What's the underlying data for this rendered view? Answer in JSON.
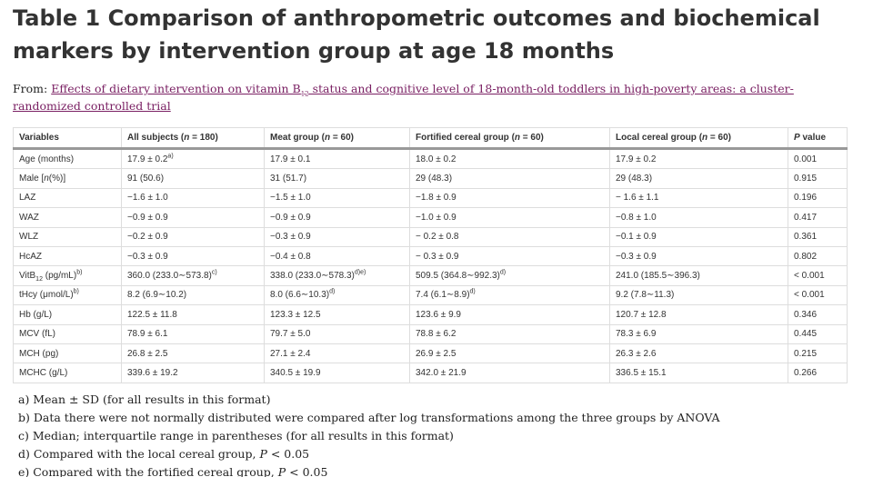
{
  "header": {
    "title": "Table 1 Comparison of anthropometric outcomes and biochemical markers by intervention group at age 18 months",
    "from_label": "From: ",
    "link": [
      "Effects of dietary intervention on vitamin B",
      {
        "sub": "12"
      },
      " status and cognitive level of 18-month-old toddlers in high-poverty areas: a cluster-randomized controlled trial"
    ]
  },
  "table": {
    "columns": [
      "Variables",
      [
        "All subjects (",
        {
          "i": "n"
        },
        " = 180)"
      ],
      [
        "Meat group (",
        {
          "i": "n"
        },
        " = 60)"
      ],
      [
        "Fortified cereal group (",
        {
          "i": "n"
        },
        " = 60)"
      ],
      [
        "Local cereal group (",
        {
          "i": "n"
        },
        " = 60)"
      ],
      [
        {
          "i": "P"
        },
        " value"
      ]
    ],
    "rows": [
      [
        "Age (months)",
        [
          "17.9 ± 0.2",
          {
            "sup": "a)"
          }
        ],
        "17.9 ± 0.1",
        "18.0 ± 0.2",
        "17.9 ± 0.2",
        "0.001"
      ],
      [
        [
          "Male [",
          {
            "i": "n"
          },
          "(%)]"
        ],
        "91 (50.6)",
        "31 (51.7)",
        "29 (48.3)",
        "29 (48.3)",
        "0.915"
      ],
      [
        "LAZ",
        "−1.6 ± 1.0",
        "−1.5 ± 1.0",
        "−1.8 ± 0.9",
        "− 1.6 ± 1.1",
        "0.196"
      ],
      [
        "WAZ",
        "−0.9 ± 0.9",
        "−0.9 ± 0.9",
        "−1.0 ± 0.9",
        "−0.8 ± 1.0",
        "0.417"
      ],
      [
        "WLZ",
        "−0.2 ± 0.9",
        "−0.3 ± 0.9",
        "− 0.2 ± 0.8",
        "−0.1 ± 0.9",
        "0.361"
      ],
      [
        "HcAZ",
        "−0.3 ± 0.9",
        "−0.4 ± 0.8",
        "− 0.3 ± 0.9",
        "−0.3 ± 0.9",
        "0.802"
      ],
      [
        [
          "VitB",
          {
            "sub": "12"
          },
          " (pg/mL)",
          {
            "sup": "b)"
          }
        ],
        [
          "360.0 (233.0∼573.8)",
          {
            "sup": "c)"
          }
        ],
        [
          "338.0 (233.0∼578.3)",
          {
            "sup": "d)e)"
          }
        ],
        [
          "509.5 (364.8∼992.3)",
          {
            "sup": "d)"
          }
        ],
        "241.0 (185.5∼396.3)",
        "< 0.001"
      ],
      [
        [
          "tHcy (μmol/L)",
          {
            "sup": "b)"
          }
        ],
        "8.2 (6.9∼10.2)",
        [
          "8.0 (6.6∼10.3)",
          {
            "sup": "d)"
          }
        ],
        [
          "7.4 (6.1∼8.9)",
          {
            "sup": "d)"
          }
        ],
        "9.2 (7.8∼11.3)",
        "< 0.001"
      ],
      [
        "Hb (g/L)",
        "122.5 ± 11.8",
        "123.3 ± 12.5",
        "123.6 ± 9.9",
        "120.7 ± 12.8",
        "0.346"
      ],
      [
        "MCV (fL)",
        "78.9 ± 6.1",
        "79.7 ± 5.0",
        "78.8 ± 6.2",
        "78.3 ± 6.9",
        "0.445"
      ],
      [
        "MCH (pg)",
        "26.8 ± 2.5",
        "27.1 ± 2.4",
        "26.9 ± 2.5",
        "26.3 ± 2.6",
        "0.215"
      ],
      [
        "MCHC (g/L)",
        "339.6 ± 19.2",
        "340.5 ± 19.9",
        "342.0 ± 21.9",
        "336.5 ± 15.1",
        "0.266"
      ]
    ]
  },
  "footnotes": [
    "a) Mean ± SD (for all results in this format)",
    "b) Data there were not normally distributed were compared after log transformations among the three groups by ANOVA",
    "c) Median; interquartile range in parentheses (for all results in this format)",
    [
      "d) Compared with the local cereal group, ",
      {
        "i": "P"
      },
      " < 0.05"
    ],
    [
      "e) Compared with the fortified cereal group, ",
      {
        "i": "P"
      },
      " < 0.05"
    ]
  ]
}
